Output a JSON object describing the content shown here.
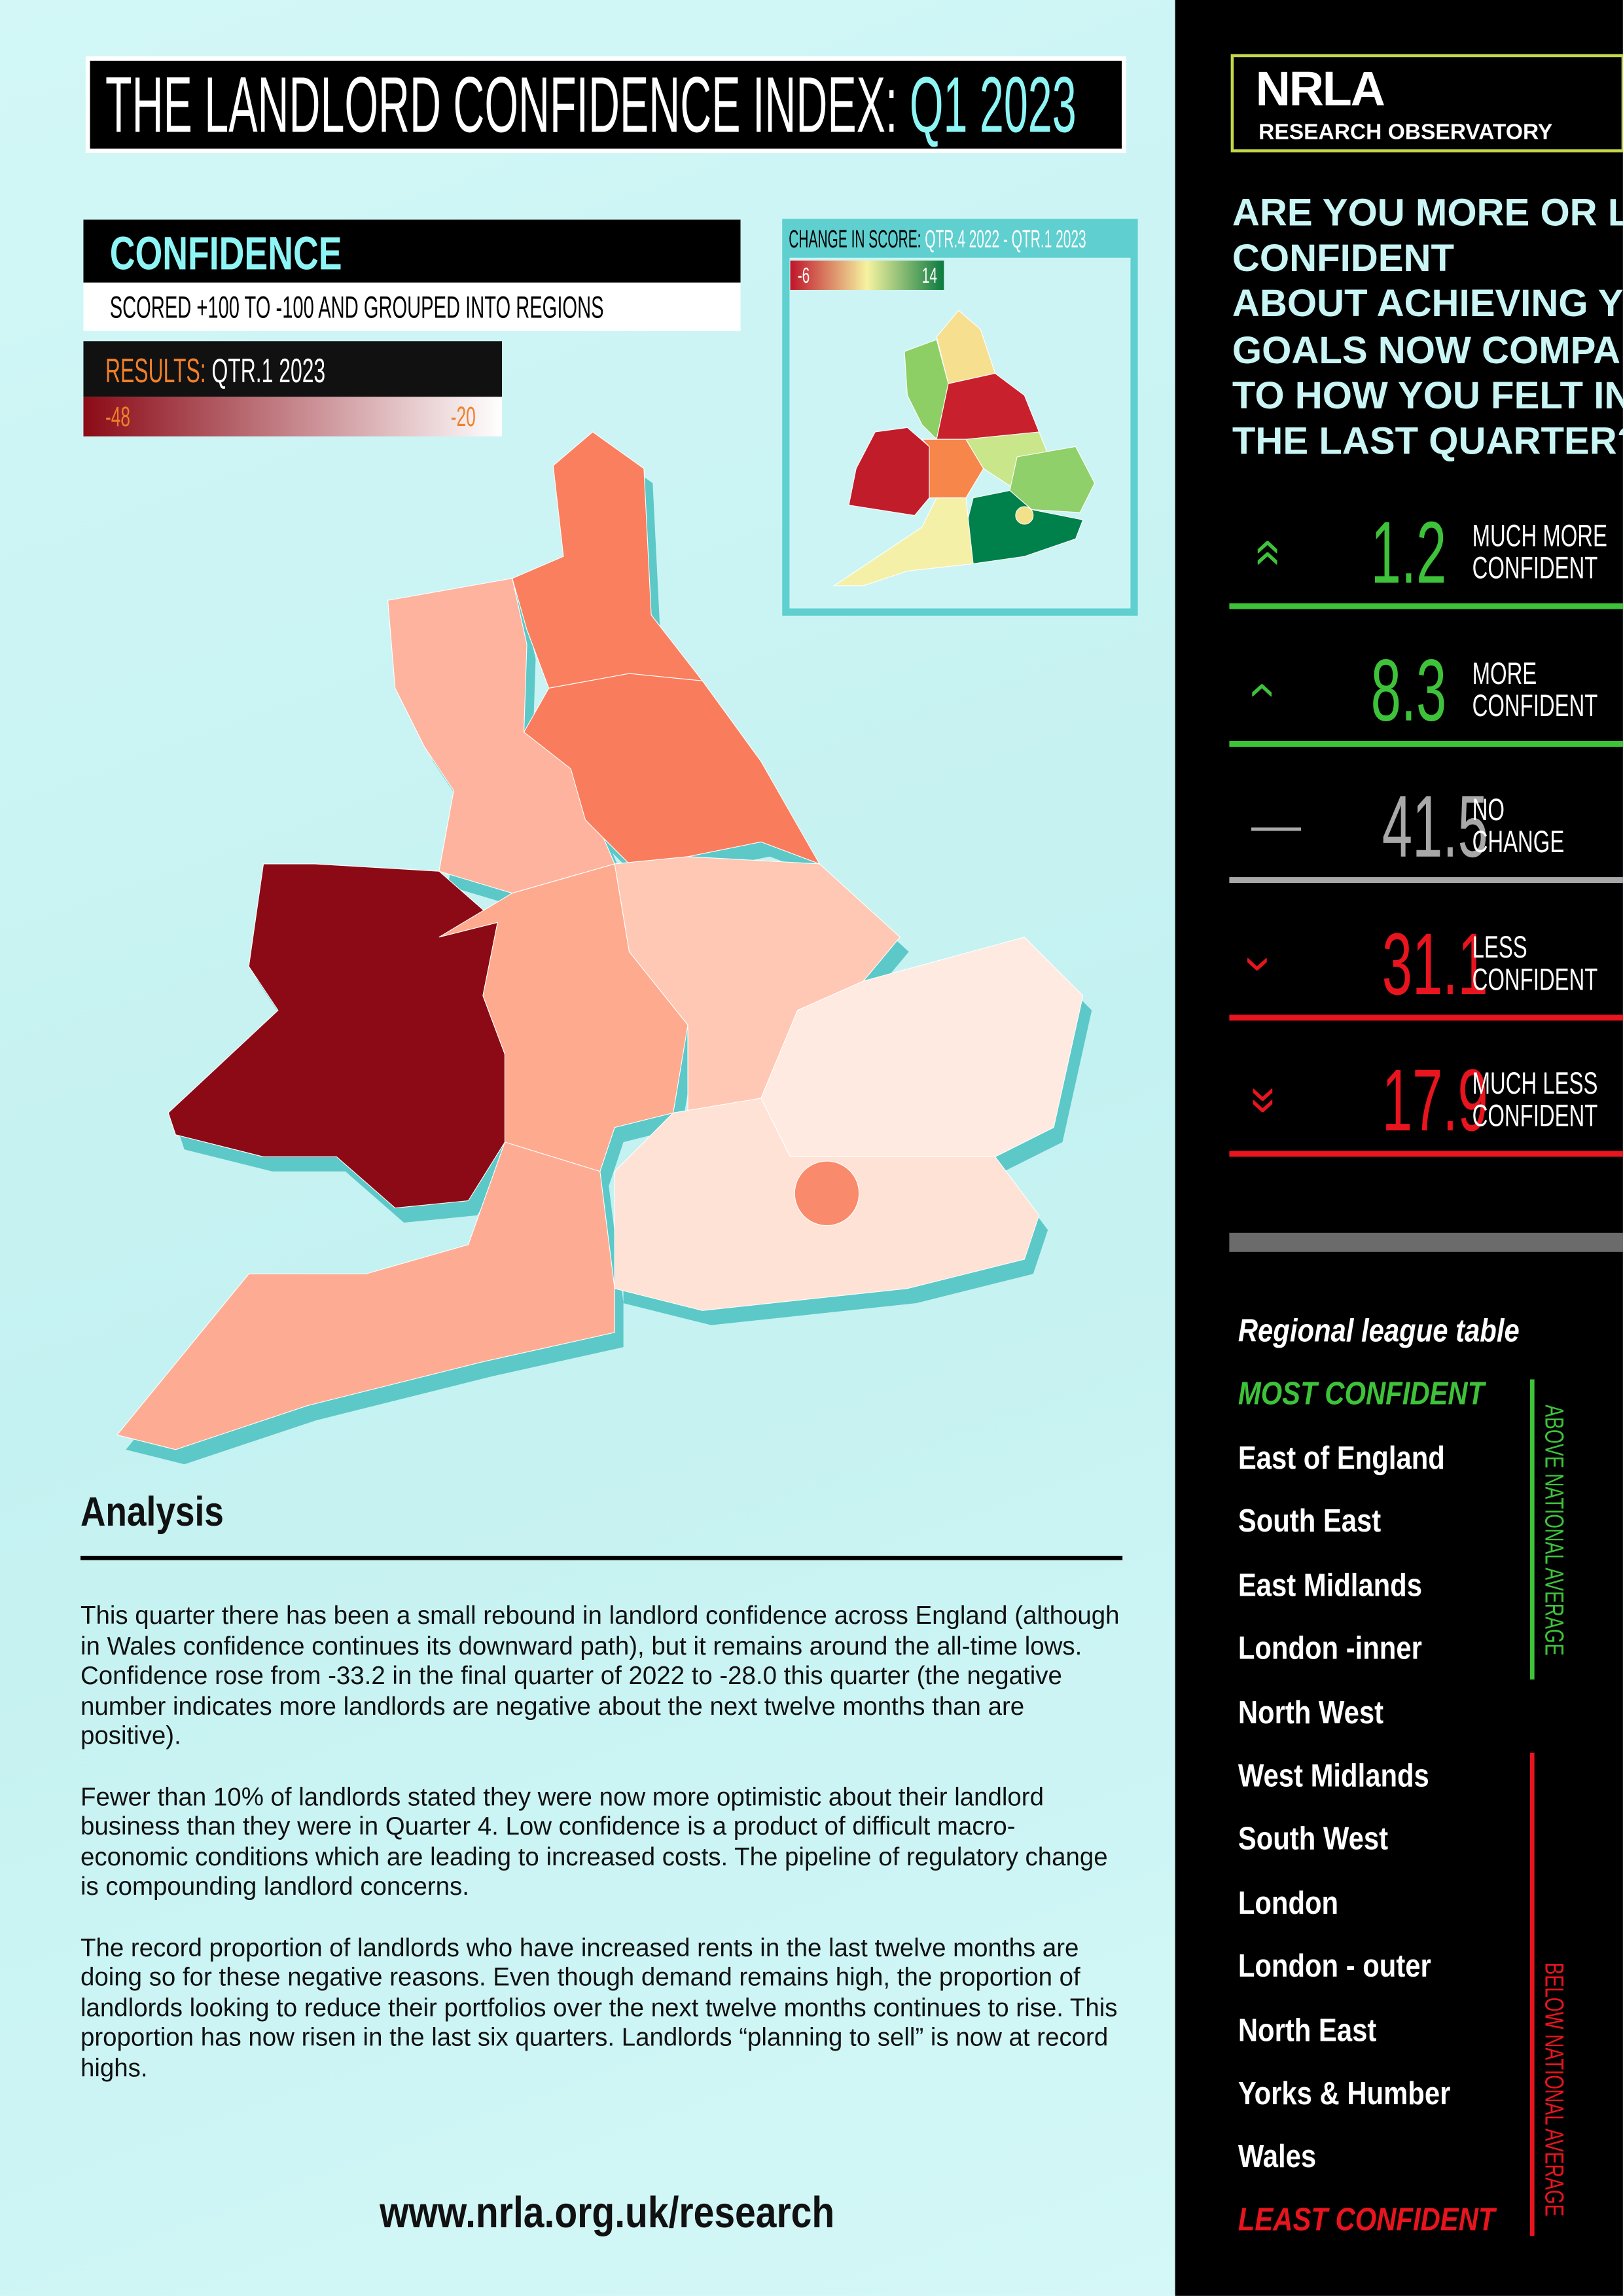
{
  "header": {
    "title": "THE LANDLORD CONFIDENCE INDEX:",
    "title_highlight": "Q1 2023"
  },
  "confidence": {
    "heading": "CONFIDENCE",
    "subtitle": "SCORED +100 TO -100 AND GROUPED INTO REGIONS"
  },
  "results": {
    "label": "RESULTS:",
    "period": "QTR.1 2023",
    "min": "-48",
    "max": "-20"
  },
  "change": {
    "label": "CHANGE IN SCORE:",
    "period": "QTR.4 2022 - QTR.1 2023",
    "min": "-6",
    "max": "14"
  },
  "logo": {
    "name": "NRLA",
    "tagline": "RESEARCH OBSERVATORY"
  },
  "question": [
    "ARE YOU MORE OR LESS",
    "CONFIDENT",
    "ABOUT ACHIEVING YOUR",
    "GOALS NOW COMPARED",
    "TO HOW YOU FELT IN",
    "THE LAST QUARTER?"
  ],
  "responses": [
    {
      "value": 1.2,
      "label": [
        "MUCH MORE",
        "CONFIDENT"
      ]
    },
    {
      "value": 8.3,
      "label": [
        "MORE",
        "CONFIDENT"
      ]
    },
    {
      "value": 41.5,
      "label": [
        "NO",
        "CHANGE"
      ]
    },
    {
      "value": 31.1,
      "label": [
        "LESS",
        "CONFIDENT"
      ]
    },
    {
      "value": 17.9,
      "label": [
        "MUCH LESS",
        "CONFIDENT"
      ]
    }
  ],
  "league": {
    "title": "Regional league table",
    "most": "MOST CONFIDENT",
    "least": "LEAST CONFIDENT",
    "above": "ABOVE NATIONAL AVERAGE",
    "below": "BELOW NATIONAL AVERAGE",
    "regions": [
      "East of England",
      "South East",
      "East Midlands",
      "London -inner",
      "North West",
      "West Midlands",
      "South West",
      "London",
      "London - outer",
      "North East",
      "Yorks & Humber",
      "Wales"
    ]
  },
  "analysis": {
    "heading": "Analysis",
    "paragraphs": [
      "This quarter there has been a small rebound in landlord confidence across England (although in Wales confidence continues its downward path), but it remains around the all-time lows. Confidence rose from -33.2 in the final quarter of 2022 to -28.0 this quarter (the negative number indicates more landlords are negative about the next twelve months than are positive).",
      "Fewer than 10% of landlords stated they were now more optimistic about their landlord business than they were in Quarter 4.  Low confidence is a product of difficult macro-economic conditions which are leading to increased costs. The pipeline of regulatory change is compounding landlord concerns.",
      "The record proportion of landlords who have increased rents in the last twelve months are doing so for these negative reasons. Even though demand remains high, the proportion of landlords looking to reduce their portfolios over the next twelve months continues to rise. This proportion has now risen in the last six quarters. Landlords “planning to sell” is now at record highs."
    ]
  },
  "url": "www.nrla.org.uk/research"
}
